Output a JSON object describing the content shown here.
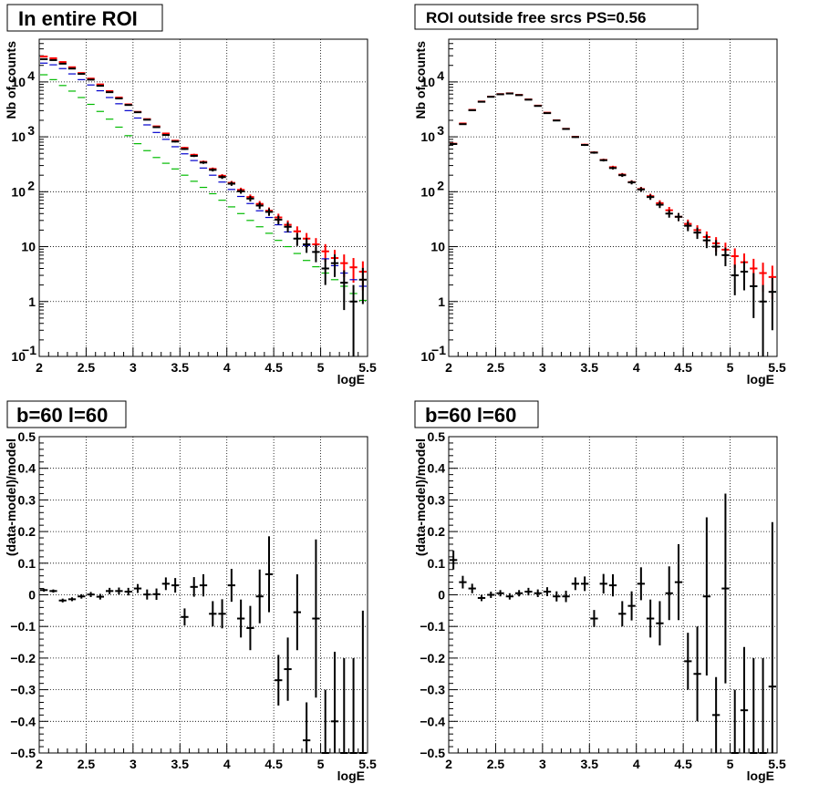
{
  "chart_data": [
    {
      "id": "tl",
      "type": "scatter",
      "title": "In entire ROI",
      "xlabel": "logE",
      "ylabel": "Nb of counts",
      "xlim": [
        2,
        5.5
      ],
      "ylim": [
        0.1,
        60000
      ],
      "yscale": "log",
      "grid": true,
      "x": [
        2.05,
        2.15,
        2.25,
        2.35,
        2.45,
        2.55,
        2.65,
        2.75,
        2.85,
        2.95,
        3.05,
        3.15,
        3.25,
        3.35,
        3.45,
        3.55,
        3.65,
        3.75,
        3.85,
        3.95,
        4.05,
        4.15,
        4.25,
        4.35,
        4.45,
        4.55,
        4.65,
        4.75,
        4.85,
        4.95,
        5.05,
        5.15,
        5.25,
        5.35,
        5.45
      ],
      "series": [
        {
          "color": "#ff0000",
          "values": [
            29000,
            27000,
            23000,
            18500,
            14500,
            11500,
            9000,
            6800,
            5200,
            3900,
            2850,
            2100,
            1550,
            1150,
            850,
            630,
            470,
            350,
            260,
            195,
            145,
            108,
            80,
            60,
            45,
            34,
            25,
            19,
            14,
            11,
            8.2,
            6.2,
            5,
            4.2,
            3.5
          ],
          "errors": [
            170,
            164,
            152,
            136,
            120,
            107,
            95,
            82,
            72,
            62,
            53,
            46,
            39,
            34,
            29,
            25,
            22,
            19,
            16,
            14,
            12,
            10.4,
            8.9,
            7.7,
            6.7,
            5.8,
            5,
            4.4,
            3.7,
            3.3,
            2.9,
            2.5,
            2.2,
            2,
            1.9
          ]
        },
        {
          "color": "#0000cc",
          "values": [
            22000,
            20500,
            17500,
            14000,
            11000,
            8800,
            6900,
            5200,
            4000,
            3000,
            2200,
            1650,
            1200,
            900,
            660,
            490,
            370,
            270,
            200,
            150,
            110,
            82,
            61,
            45,
            34,
            25,
            18.5,
            14,
            10.5,
            8,
            6,
            4.5,
            3.3,
            2.5,
            1.9
          ]
        },
        {
          "color": "#00bb00",
          "values": [
            13500,
            11000,
            8600,
            6800,
            5200,
            3900,
            2900,
            2100,
            1500,
            1050,
            750,
            560,
            420,
            330,
            260,
            200,
            155,
            120,
            92,
            70,
            53,
            40,
            30,
            23,
            17.5,
            13,
            10,
            7.5,
            5.6,
            4.3,
            3.3,
            2.5,
            1.9,
            1.4,
            1.05
          ]
        },
        {
          "color": "#000000",
          "values": [
            26000,
            25000,
            21500,
            17500,
            14000,
            11000,
            8500,
            6500,
            5000,
            3800,
            2800,
            2050,
            1500,
            1080,
            820,
            600,
            450,
            340,
            250,
            185,
            140,
            102,
            75,
            56,
            43,
            31,
            23,
            14,
            11,
            8,
            4,
            5,
            2.2,
            1,
            2.5
          ],
          "errors": [
            161,
            158,
            147,
            132,
            118,
            105,
            92,
            81,
            71,
            62,
            53,
            45,
            39,
            33,
            29,
            24,
            21,
            18,
            16,
            14,
            12,
            10,
            8.7,
            7.5,
            6.6,
            5.6,
            4.8,
            3.7,
            3.3,
            2.8,
            2,
            2.2,
            1.5,
            1,
            1.6
          ]
        }
      ]
    },
    {
      "id": "tr",
      "type": "scatter",
      "title": "ROI outside free srcs PS=0.56",
      "xlabel": "logE",
      "ylabel": "Nb of counts",
      "xlim": [
        2,
        5.5
      ],
      "ylim": [
        0.1,
        60000
      ],
      "yscale": "log",
      "grid": true,
      "x": [
        2.05,
        2.15,
        2.25,
        2.35,
        2.45,
        2.55,
        2.65,
        2.75,
        2.85,
        2.95,
        3.05,
        3.15,
        3.25,
        3.35,
        3.45,
        3.55,
        3.65,
        3.75,
        3.85,
        3.95,
        4.05,
        4.15,
        4.25,
        4.35,
        4.45,
        4.55,
        4.65,
        4.75,
        4.85,
        4.95,
        5.05,
        5.15,
        5.25,
        5.35,
        5.45
      ],
      "series": [
        {
          "color": "#ff0000",
          "values": [
            750,
            1750,
            3100,
            4400,
            5400,
            6000,
            6200,
            5800,
            4800,
            3700,
            2750,
            2000,
            1400,
            1000,
            720,
            520,
            380,
            280,
            205,
            150,
            112,
            83,
            62,
            46,
            35,
            26,
            20,
            15,
            11.5,
            8.8,
            6.7,
            5.2,
            4,
            3.3,
            2.8
          ],
          "errors": [
            27,
            42,
            56,
            66,
            73,
            77,
            79,
            76,
            69,
            61,
            52,
            45,
            37,
            32,
            27,
            23,
            19,
            17,
            14,
            12,
            10.6,
            9.1,
            7.9,
            6.8,
            5.9,
            5.1,
            4.5,
            3.9,
            3.4,
            3,
            2.6,
            2.3,
            2,
            1.8,
            1.7
          ]
        },
        {
          "color": "#000000",
          "values": [
            740,
            1700,
            3050,
            4350,
            5350,
            5950,
            6150,
            5750,
            4750,
            3650,
            2700,
            1980,
            1390,
            990,
            710,
            515,
            375,
            270,
            200,
            148,
            110,
            80,
            58,
            40,
            35,
            24,
            18,
            13,
            10,
            7,
            3,
            3.5,
            1.9,
            1,
            1.5
          ],
          "errors": [
            27,
            41,
            55,
            66,
            73,
            77,
            78,
            76,
            69,
            60,
            52,
            44,
            37,
            31,
            27,
            23,
            19,
            16,
            14,
            12,
            10.5,
            8.9,
            7.6,
            6.3,
            5.9,
            4.9,
            4.2,
            3.6,
            3.2,
            2.6,
            1.7,
            1.9,
            1.4,
            1,
            1.2
          ]
        }
      ]
    },
    {
      "id": "bl",
      "type": "scatter",
      "title": "b=60 l=60",
      "xlabel": "logE",
      "ylabel": "(data-model)/model",
      "xlim": [
        2,
        5.5
      ],
      "ylim": [
        -0.5,
        0.5
      ],
      "grid": true,
      "x": [
        2.05,
        2.15,
        2.25,
        2.35,
        2.45,
        2.55,
        2.65,
        2.75,
        2.85,
        2.95,
        3.05,
        3.15,
        3.25,
        3.35,
        3.45,
        3.55,
        3.65,
        3.75,
        3.85,
        3.95,
        4.05,
        4.15,
        4.25,
        4.35,
        4.45,
        4.55,
        4.65,
        4.75,
        4.85,
        4.95,
        5.05,
        5.15,
        5.25,
        5.35,
        5.45
      ],
      "series": [
        {
          "color": "#000000",
          "values": [
            0.015,
            0.012,
            -0.018,
            -0.014,
            -0.005,
            0.001,
            -0.006,
            0.012,
            0.012,
            0.01,
            0.02,
            0.001,
            0.002,
            0.035,
            0.03,
            -0.07,
            0.025,
            0.03,
            -0.06,
            -0.06,
            0.03,
            -0.075,
            -0.105,
            -0.005,
            0.065,
            -0.27,
            -0.235,
            -0.055,
            -0.46,
            -0.075,
            -0.5,
            -0.4,
            -0.5,
            -0.5,
            -0.5
          ],
          "errors": [
            0.005,
            0.005,
            0.006,
            0.006,
            0.007,
            0.008,
            0.009,
            0.01,
            0.011,
            0.012,
            0.014,
            0.016,
            0.018,
            0.02,
            0.023,
            0.027,
            0.031,
            0.035,
            0.04,
            0.046,
            0.052,
            0.06,
            0.07,
            0.085,
            0.12,
            0.08,
            0.1,
            0.12,
            0.12,
            0.25,
            0.2,
            0.22,
            0.3,
            0.3,
            0.45
          ]
        }
      ]
    },
    {
      "id": "br",
      "type": "scatter",
      "title": "b=60 l=60",
      "xlabel": "logE",
      "ylabel": "(data-model)/model",
      "xlim": [
        2,
        5.5
      ],
      "ylim": [
        -0.5,
        0.5
      ],
      "grid": true,
      "x": [
        2.05,
        2.15,
        2.25,
        2.35,
        2.45,
        2.55,
        2.65,
        2.75,
        2.85,
        2.95,
        3.05,
        3.15,
        3.25,
        3.35,
        3.45,
        3.55,
        3.65,
        3.75,
        3.85,
        3.95,
        4.05,
        4.15,
        4.25,
        4.35,
        4.45,
        4.55,
        4.65,
        4.75,
        4.85,
        4.95,
        5.05,
        5.15,
        5.25,
        5.35,
        5.45
      ],
      "series": [
        {
          "color": "#000000",
          "values": [
            0.11,
            0.04,
            0.02,
            -0.01,
            0.0,
            0.005,
            -0.005,
            0.005,
            0.01,
            0.005,
            0.01,
            -0.005,
            -0.005,
            0.035,
            0.035,
            -0.075,
            0.035,
            0.03,
            -0.06,
            -0.035,
            0.035,
            -0.075,
            -0.09,
            0.005,
            0.04,
            -0.21,
            -0.25,
            -0.005,
            -0.38,
            0.02,
            -0.5,
            -0.365,
            -0.5,
            -0.5,
            -0.29
          ],
          "errors": [
            0.03,
            0.02,
            0.015,
            0.01,
            0.01,
            0.01,
            0.01,
            0.01,
            0.012,
            0.012,
            0.014,
            0.016,
            0.018,
            0.02,
            0.023,
            0.027,
            0.031,
            0.035,
            0.04,
            0.046,
            0.052,
            0.06,
            0.07,
            0.085,
            0.12,
            0.09,
            0.15,
            0.25,
            0.12,
            0.3,
            0.2,
            0.2,
            0.3,
            0.3,
            0.52
          ]
        }
      ]
    }
  ]
}
